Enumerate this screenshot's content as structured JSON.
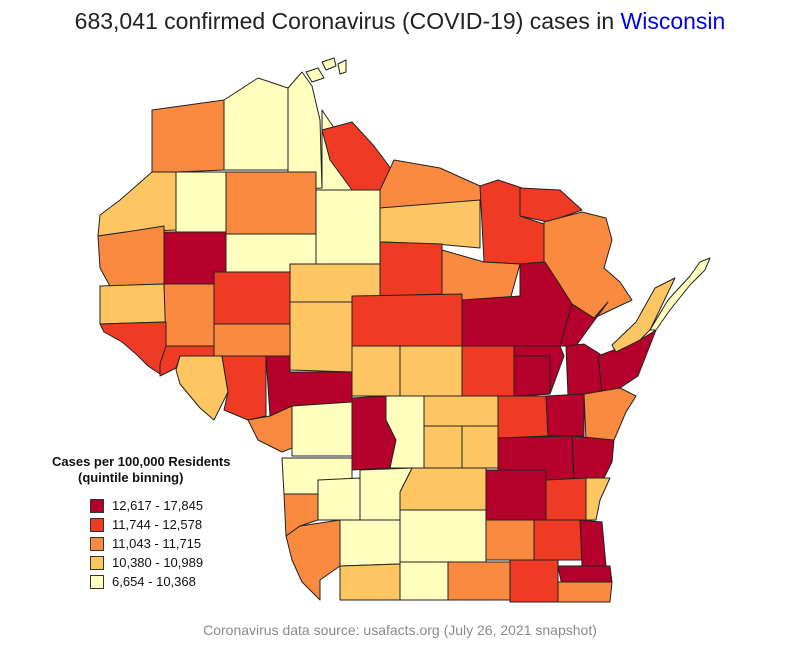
{
  "title": {
    "prefix": "683,041 confirmed Coronavirus (COVID-19) cases in ",
    "state": "Wisconsin",
    "state_color": "#0000ee"
  },
  "legend": {
    "title_line1": "Cases per 100,000 Residents",
    "title_line2": "(quintile binning)",
    "items": [
      {
        "label": "12,617 - 17,845",
        "color": "#b5002b"
      },
      {
        "label": "11,744 - 12,578",
        "color": "#ef3b24"
      },
      {
        "label": "11,043 - 11,715",
        "color": "#f98a40"
      },
      {
        "label": "10,380 - 10,989",
        "color": "#fec563"
      },
      {
        "label": "6,654 - 10,368",
        "color": "#ffffbe"
      }
    ]
  },
  "source": "Coronavirus data source: usafacts.org (July 26, 2021 snapshot)",
  "bins": {
    "b1": "#b5002b",
    "b2": "#ef3b24",
    "b3": "#f98a40",
    "b4": "#fec563",
    "b5": "#ffffbe"
  }
}
